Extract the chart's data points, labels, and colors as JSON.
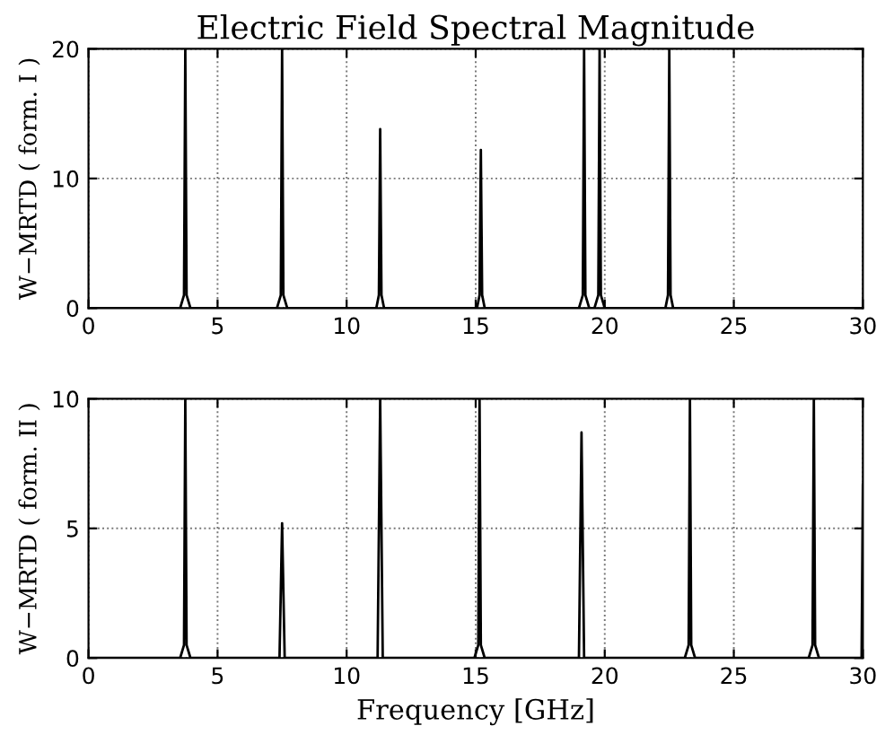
{
  "chart_data": [
    {
      "type": "line",
      "title": "Electric Field Spectral Magnitude",
      "ylabel": "W−MRTD ( form. I )",
      "xlim": [
        0,
        30
      ],
      "xticks": [
        0,
        5,
        10,
        15,
        20,
        25,
        30
      ],
      "ylim": [
        0,
        20
      ],
      "yticks": [
        0,
        10,
        20
      ],
      "grid": true,
      "series": [
        {
          "color": "#000000",
          "x": [
            0,
            3.55,
            3.7,
            3.75,
            3.8,
            3.95,
            7.3,
            7.45,
            7.5,
            7.55,
            7.7,
            11.15,
            11.25,
            11.3,
            11.35,
            11.45,
            15.05,
            15.15,
            15.2,
            15.25,
            15.35,
            19.0,
            19.15,
            19.2,
            19.25,
            19.4,
            19.6,
            19.75,
            19.8,
            19.85,
            20.0,
            22.35,
            22.45,
            22.5,
            22.55,
            22.65,
            30
          ],
          "values": [
            0,
            0,
            1,
            20,
            1,
            0,
            0,
            1,
            20,
            1,
            0,
            0,
            1,
            13.8,
            1,
            0,
            0,
            1,
            12.2,
            1,
            0,
            0,
            1,
            20,
            1,
            0,
            0,
            1,
            20,
            1,
            0,
            0,
            1,
            20,
            1,
            0,
            0
          ]
        }
      ]
    },
    {
      "type": "line",
      "xlabel": "Frequency [GHz]",
      "ylabel": "W−MRTD ( form. II )",
      "xlim": [
        0,
        30
      ],
      "xticks": [
        0,
        5,
        10,
        15,
        20,
        25,
        30
      ],
      "ylim": [
        0,
        10
      ],
      "yticks": [
        0,
        5,
        10
      ],
      "grid": true,
      "series": [
        {
          "color": "#000000",
          "x": [
            0,
            3.55,
            3.7,
            3.75,
            3.8,
            3.95,
            7.4,
            7.5,
            7.6,
            11.2,
            11.3,
            11.4,
            14.95,
            15.1,
            15.15,
            15.2,
            15.35,
            19.0,
            19.1,
            19.2,
            23.1,
            23.25,
            23.3,
            23.35,
            23.5,
            27.9,
            28.05,
            28.1,
            28.15,
            28.3,
            29.95,
            30
          ],
          "values": [
            0,
            0,
            0.5,
            10,
            0.5,
            0,
            0,
            5.2,
            0,
            0,
            10,
            0,
            0,
            0.5,
            10,
            0.5,
            0,
            0,
            8.7,
            0,
            0,
            0.5,
            10,
            0.5,
            0,
            0,
            0.5,
            10,
            0.5,
            0,
            0,
            6.7
          ]
        }
      ]
    }
  ]
}
